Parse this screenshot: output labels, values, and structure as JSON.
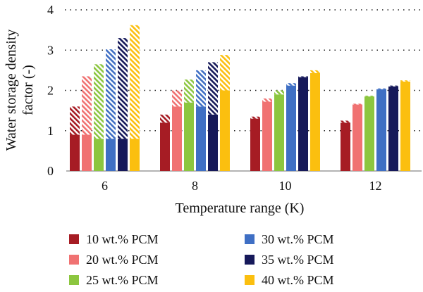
{
  "chart_data": {
    "type": "bar",
    "stacked_hatched": true,
    "categories": [
      "6",
      "8",
      "10",
      "12"
    ],
    "xlabel": "Temperature range (K)",
    "ylabel": "Water storage density factor (-)",
    "ylabel_lines": [
      "Water storage density",
      "factor (-)"
    ],
    "ylim": [
      0,
      4
    ],
    "yticks": [
      0,
      1,
      2,
      3,
      4
    ],
    "grid": "horizontal-dotted",
    "legend_position": "bottom",
    "series": [
      {
        "name": "10 wt.% PCM",
        "color": "#a61c24",
        "base": [
          0.9,
          1.2,
          1.3,
          1.2
        ],
        "total": [
          1.6,
          1.4,
          1.35,
          1.25
        ]
      },
      {
        "name": "20 wt.% PCM",
        "color": "#f07272",
        "base": [
          0.9,
          1.6,
          1.72,
          1.65
        ],
        "total": [
          2.35,
          2.0,
          1.8,
          1.67
        ]
      },
      {
        "name": "25 wt.% PCM",
        "color": "#8cc63f",
        "base": [
          0.8,
          1.7,
          1.9,
          1.85
        ],
        "total": [
          2.65,
          2.27,
          2.0,
          1.87
        ]
      },
      {
        "name": "30 wt.% PCM",
        "color": "#3f6fc4",
        "base": [
          0.8,
          1.6,
          2.12,
          2.03
        ],
        "total": [
          3.02,
          2.5,
          2.18,
          2.05
        ]
      },
      {
        "name": "35 wt.% PCM",
        "color": "#16195a",
        "base": [
          0.8,
          1.4,
          2.33,
          2.1
        ],
        "total": [
          3.3,
          2.7,
          2.35,
          2.12
        ]
      },
      {
        "name": "40 wt.% PCM",
        "color": "#fbbf0f",
        "base": [
          0.8,
          2.0,
          2.43,
          2.22
        ],
        "total": [
          3.62,
          2.88,
          2.5,
          2.25
        ]
      }
    ]
  }
}
